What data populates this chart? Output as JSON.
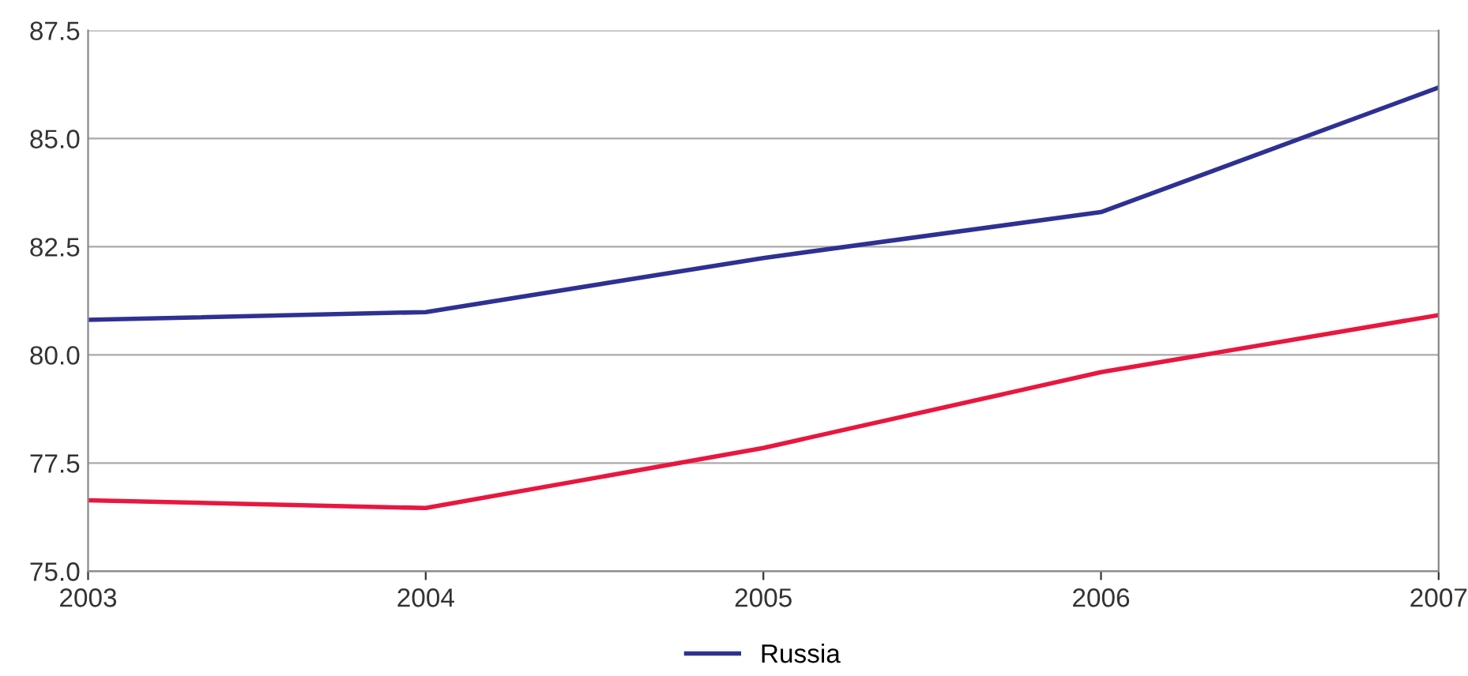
{
  "chart_data": {
    "type": "line",
    "x": [
      2003,
      2004,
      2005,
      2006,
      2007
    ],
    "series": [
      {
        "color": "#e8173f",
        "values": [
          76.64,
          76.46,
          77.85,
          79.6,
          80.92
        ]
      },
      {
        "name": "Russia",
        "color": "#2e3192",
        "values": [
          80.81,
          80.99,
          82.24,
          83.3,
          86.18
        ]
      }
    ],
    "xlim": [
      2003,
      2007
    ],
    "xticks": [
      2003,
      2004,
      2005,
      2006,
      2007
    ],
    "ylim": [
      75,
      87.5
    ],
    "yticks": [
      {
        "value": 75,
        "label": "75.0"
      },
      {
        "value": 77.5,
        "label": "77.5"
      },
      {
        "value": 80,
        "label": "80.0"
      },
      {
        "value": 82.5,
        "label": "82.5"
      },
      {
        "value": 85,
        "label": "85.0"
      },
      {
        "value": 87.5,
        "label": "87.5"
      }
    ],
    "grid": "y",
    "legend": "bottom",
    "marker": "none",
    "line_style": "solid"
  }
}
